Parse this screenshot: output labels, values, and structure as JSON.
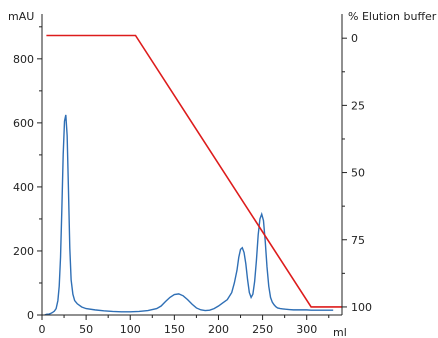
{
  "chart_data": {
    "type": "line",
    "title": "",
    "xlabel": "ml",
    "ylabel": "mAU",
    "y2label": "% Elution buffer",
    "xlim": [
      0,
      340
    ],
    "ylim": [
      0,
      940
    ],
    "y2lim": [
      103,
      -9
    ],
    "x_ticks": [
      0,
      50,
      100,
      150,
      200,
      250,
      300
    ],
    "x_tick_labels": [
      "0",
      "50",
      "100",
      "150",
      "200",
      "250",
      "300"
    ],
    "y_ticks": [
      0,
      200,
      400,
      600,
      800
    ],
    "y_tick_labels": [
      "0",
      "200",
      "400",
      "600",
      "800"
    ],
    "y2_ticks": [
      0,
      25,
      50,
      75,
      100
    ],
    "y2_tick_labels": [
      "0",
      "25",
      "50",
      "75",
      "100"
    ],
    "grid": false,
    "colors": {
      "absorbance": "#2f6fb5",
      "gradient": "#dd1c1c",
      "axis": "#222222"
    },
    "series": [
      {
        "axis": "left",
        "x": [
          3,
          5,
          8,
          10,
          12,
          14,
          16,
          18,
          19.5,
          21,
          22.5,
          24,
          25.5,
          27,
          28.5,
          30,
          31.5,
          33,
          35,
          37,
          40,
          45,
          50,
          60,
          70,
          80,
          90,
          100,
          110,
          120,
          130,
          135,
          140,
          145,
          150,
          155,
          160,
          165,
          170,
          175,
          180,
          185,
          190,
          195,
          200,
          205,
          210,
          215,
          218,
          221,
          223,
          225,
          227,
          229,
          231,
          233,
          235,
          237,
          239,
          241,
          243,
          245,
          247,
          249,
          251,
          253,
          255,
          257,
          259,
          261,
          263,
          265,
          267,
          270,
          273,
          276,
          280,
          285,
          290,
          295,
          300,
          305,
          310,
          320,
          330
        ],
        "y": [
          0,
          2,
          3,
          5,
          8,
          12,
          20,
          45,
          90,
          180,
          330,
          500,
          605,
          625,
          560,
          390,
          210,
          110,
          65,
          45,
          35,
          25,
          20,
          16,
          13,
          11,
          10,
          10,
          11,
          14,
          20,
          28,
          42,
          55,
          64,
          66,
          60,
          48,
          34,
          22,
          16,
          14,
          15,
          20,
          28,
          38,
          48,
          70,
          100,
          140,
          180,
          205,
          210,
          195,
          160,
          110,
          70,
          55,
          65,
          105,
          170,
          250,
          300,
          315,
          295,
          230,
          150,
          90,
          55,
          40,
          32,
          26,
          22,
          20,
          19,
          18,
          17,
          16,
          16,
          16,
          16,
          15,
          15,
          15,
          15
        ]
      },
      {
        "axis": "right",
        "x": [
          5,
          106,
          305,
          340
        ],
        "y": [
          -1,
          -1,
          100,
          100
        ]
      }
    ]
  }
}
